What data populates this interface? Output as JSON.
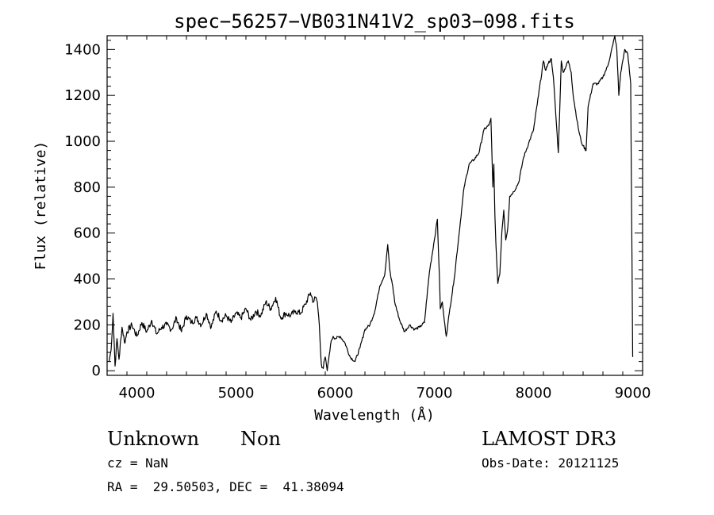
{
  "chart_data": {
    "type": "line",
    "title": "spec−56257−VB031N41V2_sp03−098.fits",
    "xlabel": "Wavelength (Å)",
    "ylabel": "Flux (relative)",
    "xlim": [
      3700,
      9100
    ],
    "ylim": [
      -20,
      1460
    ],
    "xticks": [
      4000,
      5000,
      6000,
      7000,
      8000,
      9000
    ],
    "yticks": [
      0,
      200,
      400,
      600,
      800,
      1000,
      1200,
      1400
    ],
    "line_color": "#000000",
    "grid": false,
    "series": [
      {
        "x": [
          3720,
          3740,
          3760,
          3780,
          3800,
          3820,
          3850,
          3880,
          3900,
          3950,
          4000,
          4050,
          4100,
          4150,
          4200,
          4250,
          4300,
          4350,
          4400,
          4450,
          4500,
          4550,
          4600,
          4650,
          4700,
          4750,
          4800,
          4850,
          4900,
          4950,
          5000,
          5050,
          5100,
          5150,
          5200,
          5250,
          5300,
          5350,
          5400,
          5450,
          5500,
          5550,
          5600,
          5650,
          5700,
          5750,
          5780,
          5800,
          5820,
          5840,
          5860,
          5880,
          5900,
          5920,
          5940,
          5960,
          5980,
          6000,
          6050,
          6100,
          6150,
          6200,
          6250,
          6300,
          6350,
          6400,
          6450,
          6500,
          6530,
          6550,
          6565,
          6580,
          6600,
          6650,
          6700,
          6750,
          6800,
          6850,
          6900,
          6950,
          7000,
          7030,
          7050,
          7060,
          7080,
          7100,
          7120,
          7150,
          7200,
          7250,
          7300,
          7350,
          7400,
          7450,
          7500,
          7550,
          7570,
          7590,
          7600,
          7610,
          7620,
          7640,
          7660,
          7680,
          7700,
          7720,
          7740,
          7760,
          7800,
          7850,
          7900,
          7950,
          8000,
          8050,
          8100,
          8120,
          8150,
          8180,
          8200,
          8250,
          8280,
          8300,
          8350,
          8380,
          8400,
          8450,
          8480,
          8500,
          8530,
          8550,
          8600,
          8650,
          8700,
          8750,
          8800,
          8820,
          8840,
          8860,
          8880,
          8900,
          8920,
          8950,
          8980,
          9000
        ],
        "y": [
          40,
          90,
          250,
          20,
          140,
          50,
          190,
          120,
          170,
          200,
          150,
          210,
          170,
          220,
          160,
          190,
          200,
          180,
          230,
          170,
          240,
          210,
          230,
          200,
          250,
          190,
          260,
          220,
          240,
          210,
          250,
          230,
          270,
          220,
          260,
          240,
          300,
          270,
          320,
          230,
          250,
          240,
          260,
          250,
          290,
          340,
          300,
          320,
          300,
          200,
          30,
          10,
          60,
          0,
          70,
          130,
          150,
          140,
          150,
          120,
          60,
          40,
          100,
          180,
          200,
          260,
          370,
          420,
          550,
          440,
          400,
          370,
          300,
          220,
          170,
          200,
          180,
          190,
          210,
          430,
          570,
          660,
          420,
          270,
          300,
          220,
          150,
          250,
          400,
          600,
          800,
          900,
          920,
          950,
          1050,
          1070,
          1100,
          800,
          900,
          680,
          560,
          380,
          420,
          600,
          700,
          570,
          620,
          760,
          780,
          820,
          930,
          990,
          1050,
          1200,
          1350,
          1310,
          1340,
          1360,
          1280,
          950,
          1350,
          1300,
          1350,
          1300,
          1200,
          1060,
          1000,
          980,
          960,
          1150,
          1250,
          1250,
          1280,
          1330,
          1420,
          1460,
          1400,
          1200,
          1300,
          1350,
          1400,
          1380,
          1250,
          60
        ]
      }
    ]
  },
  "info": {
    "class": "Unknown",
    "subclass": "Non",
    "survey": "LAMOST DR3",
    "cz": "cz = NaN",
    "obs_date": "Obs-Date: 20121125",
    "radec": "RA =  29.50503, DEC =  41.38094"
  }
}
